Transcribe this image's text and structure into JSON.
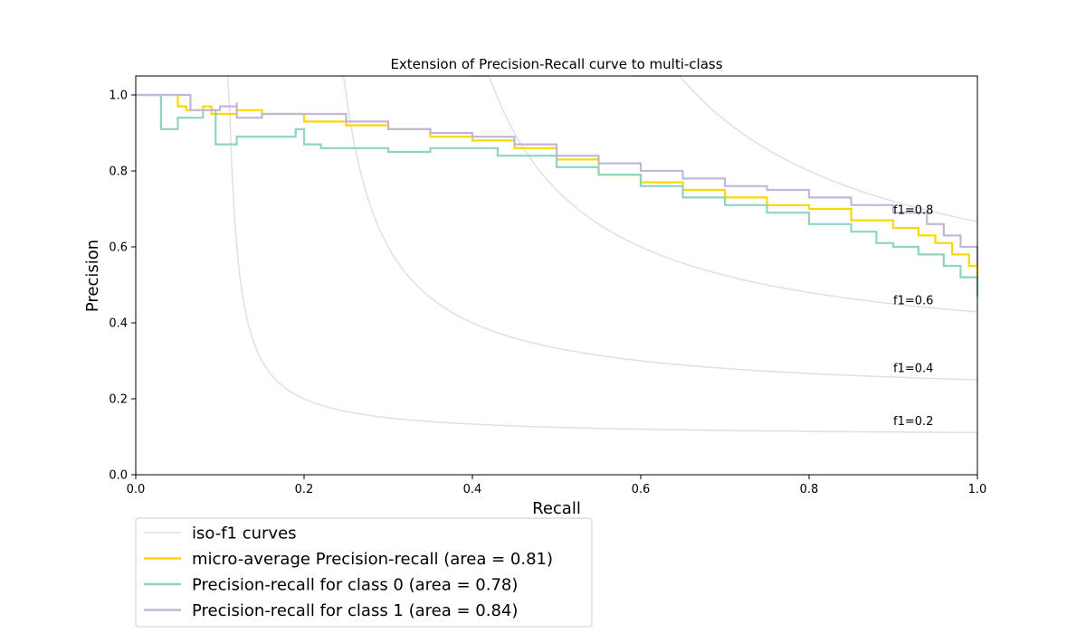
{
  "chart_data": {
    "type": "line",
    "title": "Extension of Precision-Recall curve to multi-class",
    "xlabel": "Recall",
    "ylabel": "Precision",
    "xlim": [
      0.0,
      1.0
    ],
    "ylim": [
      0.0,
      1.05
    ],
    "xticks": [
      "0.0",
      "0.2",
      "0.4",
      "0.6",
      "0.8",
      "1.0"
    ],
    "yticks": [
      "0.0",
      "0.2",
      "0.4",
      "0.6",
      "0.8",
      "1.0"
    ],
    "grid": false,
    "legend_position": "below the plot, left",
    "iso_f1": [
      {
        "f1": 0.2,
        "label": "f1=0.2"
      },
      {
        "f1": 0.4,
        "label": "f1=0.4"
      },
      {
        "f1": 0.6,
        "label": "f1=0.6"
      },
      {
        "f1": 0.8,
        "label": "f1=0.8"
      }
    ],
    "legend": [
      {
        "label": "iso-f1 curves",
        "color": "#e0e0e0"
      },
      {
        "label": "micro-average Precision-recall (area = 0.81)",
        "color": "#ffd700"
      },
      {
        "label": "Precision-recall for class 0 (area = 0.78)",
        "color": "#8fd3c4"
      },
      {
        "label": "Precision-recall for class 1 (area = 0.84)",
        "color": "#c3b6d9"
      }
    ],
    "series": [
      {
        "color": "#ffd700",
        "points": [
          [
            0.0,
            1.0
          ],
          [
            0.05,
            1.0
          ],
          [
            0.05,
            0.97
          ],
          [
            0.06,
            0.96
          ],
          [
            0.08,
            0.97
          ],
          [
            0.09,
            0.95
          ],
          [
            0.12,
            0.96
          ],
          [
            0.15,
            0.95
          ],
          [
            0.2,
            0.93
          ],
          [
            0.25,
            0.92
          ],
          [
            0.3,
            0.91
          ],
          [
            0.35,
            0.89
          ],
          [
            0.4,
            0.88
          ],
          [
            0.45,
            0.86
          ],
          [
            0.5,
            0.83
          ],
          [
            0.55,
            0.79
          ],
          [
            0.6,
            0.77
          ],
          [
            0.65,
            0.75
          ],
          [
            0.7,
            0.73
          ],
          [
            0.75,
            0.71
          ],
          [
            0.8,
            0.7
          ],
          [
            0.85,
            0.67
          ],
          [
            0.9,
            0.65
          ],
          [
            0.93,
            0.63
          ],
          [
            0.95,
            0.61
          ],
          [
            0.97,
            0.58
          ],
          [
            0.99,
            0.55
          ],
          [
            1.0,
            0.51
          ]
        ]
      },
      {
        "color": "#8fd3c4",
        "points": [
          [
            0.0,
            1.0
          ],
          [
            0.03,
            1.0
          ],
          [
            0.03,
            0.91
          ],
          [
            0.05,
            0.94
          ],
          [
            0.08,
            0.96
          ],
          [
            0.09,
            0.96
          ],
          [
            0.095,
            0.87
          ],
          [
            0.12,
            0.89
          ],
          [
            0.14,
            0.89
          ],
          [
            0.19,
            0.91
          ],
          [
            0.2,
            0.87
          ],
          [
            0.22,
            0.86
          ],
          [
            0.25,
            0.86
          ],
          [
            0.3,
            0.85
          ],
          [
            0.35,
            0.86
          ],
          [
            0.4,
            0.86
          ],
          [
            0.43,
            0.84
          ],
          [
            0.47,
            0.84
          ],
          [
            0.5,
            0.81
          ],
          [
            0.55,
            0.79
          ],
          [
            0.6,
            0.76
          ],
          [
            0.65,
            0.73
          ],
          [
            0.7,
            0.71
          ],
          [
            0.75,
            0.69
          ],
          [
            0.8,
            0.66
          ],
          [
            0.85,
            0.64
          ],
          [
            0.88,
            0.61
          ],
          [
            0.9,
            0.6
          ],
          [
            0.93,
            0.58
          ],
          [
            0.96,
            0.55
          ],
          [
            0.98,
            0.52
          ],
          [
            1.0,
            0.47
          ]
        ]
      },
      {
        "color": "#c3b6d9",
        "points": [
          [
            0.0,
            1.0
          ],
          [
            0.06,
            1.0
          ],
          [
            0.065,
            0.96
          ],
          [
            0.1,
            0.97
          ],
          [
            0.12,
            0.98
          ],
          [
            0.12,
            0.94
          ],
          [
            0.15,
            0.95
          ],
          [
            0.2,
            0.95
          ],
          [
            0.25,
            0.93
          ],
          [
            0.3,
            0.91
          ],
          [
            0.35,
            0.9
          ],
          [
            0.4,
            0.89
          ],
          [
            0.45,
            0.87
          ],
          [
            0.5,
            0.84
          ],
          [
            0.55,
            0.82
          ],
          [
            0.6,
            0.8
          ],
          [
            0.65,
            0.78
          ],
          [
            0.7,
            0.76
          ],
          [
            0.75,
            0.75
          ],
          [
            0.8,
            0.73
          ],
          [
            0.85,
            0.71
          ],
          [
            0.9,
            0.69
          ],
          [
            0.94,
            0.66
          ],
          [
            0.96,
            0.63
          ],
          [
            0.98,
            0.6
          ],
          [
            1.0,
            0.55
          ]
        ]
      }
    ]
  }
}
